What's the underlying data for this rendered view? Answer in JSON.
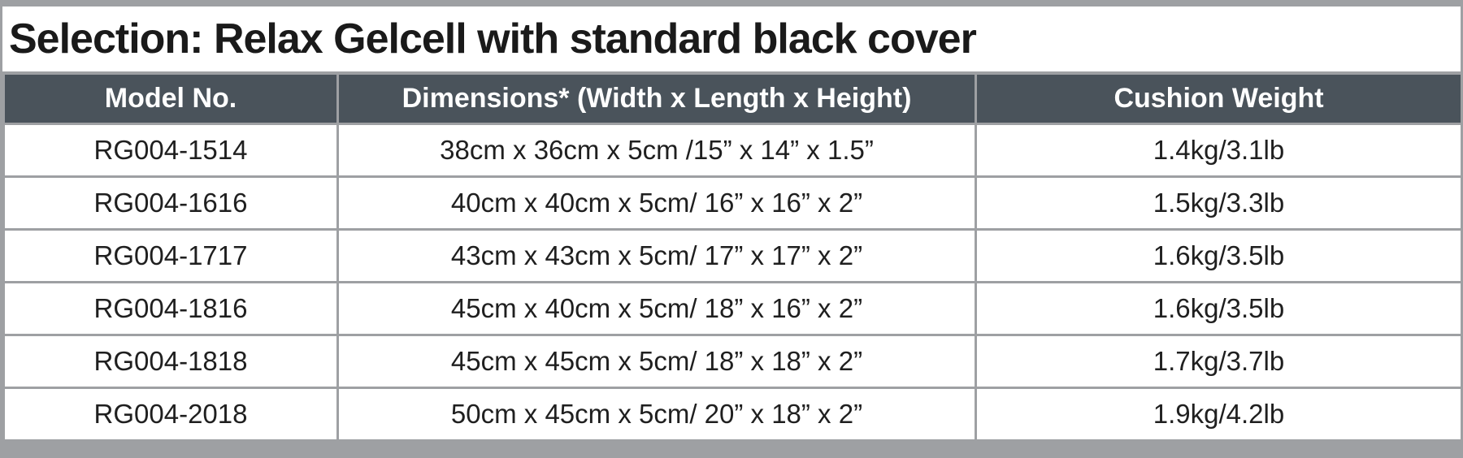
{
  "title": "Selection: Relax Gelcell with standard black cover",
  "table": {
    "columns": [
      "Model No.",
      "Dimensions* (Width x Length x Height)",
      "Cushion Weight"
    ],
    "rows": [
      {
        "model": "RG004-1514",
        "dimensions": "38cm x 36cm x 5cm /15” x 14” x 1.5”",
        "weight": "1.4kg/3.1lb"
      },
      {
        "model": "RG004-1616",
        "dimensions": "40cm x 40cm x 5cm/ 16” x 16” x 2”",
        "weight": "1.5kg/3.3lb"
      },
      {
        "model": "RG004-1717",
        "dimensions": "43cm x 43cm x 5cm/ 17” x 17” x 2”",
        "weight": "1.6kg/3.5lb"
      },
      {
        "model": "RG004-1816",
        "dimensions": "45cm x 40cm x 5cm/ 18” x 16” x 2”",
        "weight": "1.6kg/3.5lb"
      },
      {
        "model": "RG004-1818",
        "dimensions": "45cm x 45cm x 5cm/ 18” x 18” x 2”",
        "weight": "1.7kg/3.7lb"
      },
      {
        "model": "RG004-2018",
        "dimensions": "50cm x 45cm x 5cm/ 20” x 18” x 2”",
        "weight": "1.9kg/4.2lb"
      }
    ]
  },
  "colors": {
    "header_bg": "#4A535B",
    "header_text": "#FFFFFF",
    "border": "#9EA0A3",
    "title_text": "#1A1A1A",
    "cell_text": "#1F1F1F",
    "row_bg": "#FFFFFF"
  }
}
